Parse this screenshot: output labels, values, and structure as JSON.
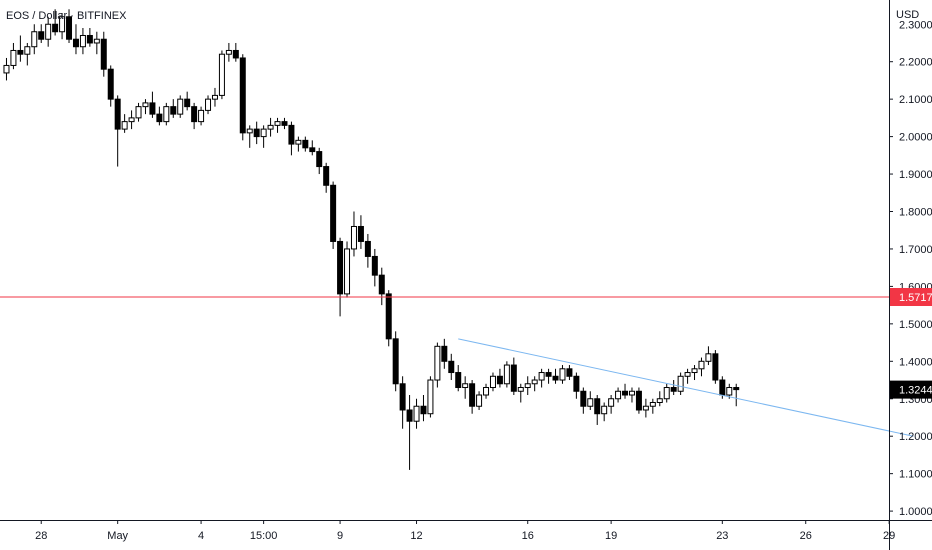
{
  "header": {
    "symbol": "EOS / Dollar",
    "exchange": "BITFINEX"
  },
  "chart_data": {
    "type": "candlestick",
    "title": "EOS / Dollar · BITFINEX",
    "currency": "USD",
    "ylim": [
      0.95,
      2.3
    ],
    "y_ticks": [
      2.2,
      2.1,
      2.0,
      1.9,
      1.8,
      1.7,
      1.6,
      1.5,
      1.4,
      1.3,
      1.2,
      1.1,
      1.0
    ],
    "y_tick_labels": [
      "2.2000",
      "2.1000",
      "2.0000",
      "1.9000",
      "1.8000",
      "1.7000",
      "1.6000",
      "1.5000",
      "1.4000",
      "1.3000",
      "1.2000",
      "1.1000",
      "1.0000"
    ],
    "top_partial_label": "2.3000",
    "x_ticks": [
      {
        "label": "28",
        "bar": 5
      },
      {
        "label": "May",
        "bar": 16
      },
      {
        "label": "4",
        "bar": 28
      },
      {
        "label": "15:00",
        "bar": 37
      },
      {
        "label": "9",
        "bar": 48
      },
      {
        "label": "12",
        "bar": 59
      },
      {
        "label": "16",
        "bar": 75
      },
      {
        "label": "19",
        "bar": 87
      },
      {
        "label": "23",
        "bar": 103
      },
      {
        "label": "26",
        "bar": 115
      },
      {
        "label": "29",
        "bar": 127
      }
    ],
    "horizontal_line": {
      "value": 1.5717,
      "label": "1.5717",
      "color": "#f23645"
    },
    "last_price": {
      "value": 1.3244,
      "label": "1.3244"
    },
    "trendline": {
      "from": {
        "bar": 65,
        "price": 1.46
      },
      "to": {
        "bar": 131,
        "price": 1.2
      },
      "color": "#7cb7f0"
    },
    "candles": [
      [
        2.17,
        2.21,
        2.15,
        2.19
      ],
      [
        2.19,
        2.25,
        2.18,
        2.23
      ],
      [
        2.23,
        2.27,
        2.2,
        2.22
      ],
      [
        2.22,
        2.25,
        2.19,
        2.24
      ],
      [
        2.24,
        2.3,
        2.22,
        2.28
      ],
      [
        2.28,
        2.3,
        2.25,
        2.26
      ],
      [
        2.26,
        2.32,
        2.24,
        2.3
      ],
      [
        2.3,
        2.34,
        2.27,
        2.28
      ],
      [
        2.28,
        2.33,
        2.26,
        2.32
      ],
      [
        2.32,
        2.34,
        2.25,
        2.26
      ],
      [
        2.26,
        2.3,
        2.22,
        2.24
      ],
      [
        2.24,
        2.29,
        2.22,
        2.27
      ],
      [
        2.27,
        2.29,
        2.24,
        2.25
      ],
      [
        2.25,
        2.28,
        2.22,
        2.26
      ],
      [
        2.26,
        2.28,
        2.16,
        2.18
      ],
      [
        2.18,
        2.19,
        2.08,
        2.1
      ],
      [
        2.1,
        2.11,
        1.92,
        2.02
      ],
      [
        2.02,
        2.06,
        2.01,
        2.04
      ],
      [
        2.04,
        2.07,
        2.02,
        2.05
      ],
      [
        2.05,
        2.09,
        2.04,
        2.08
      ],
      [
        2.08,
        2.1,
        2.06,
        2.09
      ],
      [
        2.09,
        2.12,
        2.05,
        2.06
      ],
      [
        2.06,
        2.08,
        2.03,
        2.04
      ],
      [
        2.04,
        2.09,
        2.03,
        2.08
      ],
      [
        2.08,
        2.1,
        2.05,
        2.06
      ],
      [
        2.06,
        2.11,
        2.05,
        2.1
      ],
      [
        2.1,
        2.12,
        2.07,
        2.08
      ],
      [
        2.08,
        2.09,
        2.02,
        2.04
      ],
      [
        2.04,
        2.08,
        2.03,
        2.07
      ],
      [
        2.07,
        2.11,
        2.06,
        2.1
      ],
      [
        2.1,
        2.13,
        2.08,
        2.11
      ],
      [
        2.11,
        2.23,
        2.1,
        2.22
      ],
      [
        2.22,
        2.25,
        2.2,
        2.23
      ],
      [
        2.23,
        2.25,
        2.2,
        2.21
      ],
      [
        2.21,
        2.22,
        1.99,
        2.01
      ],
      [
        2.01,
        2.03,
        1.97,
        2.02
      ],
      [
        2.02,
        2.04,
        1.98,
        2.0
      ],
      [
        2.0,
        2.03,
        1.97,
        2.02
      ],
      [
        2.02,
        2.05,
        2.0,
        2.03
      ],
      [
        2.03,
        2.05,
        2.01,
        2.04
      ],
      [
        2.04,
        2.05,
        2.02,
        2.03
      ],
      [
        2.03,
        2.04,
        1.95,
        1.98
      ],
      [
        1.98,
        2.0,
        1.96,
        1.99
      ],
      [
        1.99,
        2.0,
        1.96,
        1.97
      ],
      [
        1.97,
        1.99,
        1.95,
        1.96
      ],
      [
        1.96,
        1.97,
        1.9,
        1.92
      ],
      [
        1.92,
        1.93,
        1.85,
        1.87
      ],
      [
        1.87,
        1.88,
        1.7,
        1.72
      ],
      [
        1.72,
        1.73,
        1.52,
        1.58
      ],
      [
        1.58,
        1.72,
        1.57,
        1.7
      ],
      [
        1.7,
        1.8,
        1.68,
        1.76
      ],
      [
        1.76,
        1.79,
        1.7,
        1.72
      ],
      [
        1.72,
        1.74,
        1.65,
        1.68
      ],
      [
        1.68,
        1.7,
        1.6,
        1.63
      ],
      [
        1.63,
        1.65,
        1.55,
        1.58
      ],
      [
        1.58,
        1.59,
        1.44,
        1.46
      ],
      [
        1.46,
        1.48,
        1.32,
        1.34
      ],
      [
        1.34,
        1.36,
        1.22,
        1.27
      ],
      [
        1.27,
        1.31,
        1.11,
        1.24
      ],
      [
        1.24,
        1.3,
        1.22,
        1.28
      ],
      [
        1.28,
        1.31,
        1.24,
        1.26
      ],
      [
        1.26,
        1.36,
        1.25,
        1.35
      ],
      [
        1.35,
        1.45,
        1.33,
        1.44
      ],
      [
        1.44,
        1.46,
        1.38,
        1.4
      ],
      [
        1.4,
        1.42,
        1.35,
        1.37
      ],
      [
        1.37,
        1.39,
        1.32,
        1.33
      ],
      [
        1.33,
        1.36,
        1.3,
        1.34
      ],
      [
        1.34,
        1.35,
        1.26,
        1.28
      ],
      [
        1.28,
        1.32,
        1.27,
        1.31
      ],
      [
        1.31,
        1.34,
        1.3,
        1.33
      ],
      [
        1.33,
        1.37,
        1.32,
        1.36
      ],
      [
        1.36,
        1.38,
        1.33,
        1.34
      ],
      [
        1.34,
        1.4,
        1.33,
        1.39
      ],
      [
        1.39,
        1.41,
        1.31,
        1.32
      ],
      [
        1.32,
        1.34,
        1.29,
        1.33
      ],
      [
        1.33,
        1.36,
        1.31,
        1.34
      ],
      [
        1.34,
        1.36,
        1.32,
        1.35
      ],
      [
        1.35,
        1.38,
        1.33,
        1.37
      ],
      [
        1.37,
        1.38,
        1.34,
        1.36
      ],
      [
        1.36,
        1.38,
        1.34,
        1.35
      ],
      [
        1.35,
        1.39,
        1.34,
        1.38
      ],
      [
        1.38,
        1.39,
        1.35,
        1.36
      ],
      [
        1.36,
        1.37,
        1.3,
        1.32
      ],
      [
        1.32,
        1.33,
        1.26,
        1.28
      ],
      [
        1.28,
        1.32,
        1.27,
        1.3
      ],
      [
        1.3,
        1.31,
        1.23,
        1.26
      ],
      [
        1.26,
        1.29,
        1.24,
        1.28
      ],
      [
        1.28,
        1.31,
        1.26,
        1.3
      ],
      [
        1.3,
        1.33,
        1.29,
        1.32
      ],
      [
        1.32,
        1.34,
        1.3,
        1.31
      ],
      [
        1.31,
        1.33,
        1.29,
        1.32
      ],
      [
        1.32,
        1.33,
        1.26,
        1.27
      ],
      [
        1.27,
        1.3,
        1.25,
        1.28
      ],
      [
        1.28,
        1.3,
        1.26,
        1.29
      ],
      [
        1.29,
        1.32,
        1.28,
        1.3
      ],
      [
        1.3,
        1.34,
        1.29,
        1.33
      ],
      [
        1.33,
        1.35,
        1.31,
        1.32
      ],
      [
        1.32,
        1.37,
        1.31,
        1.36
      ],
      [
        1.36,
        1.38,
        1.34,
        1.37
      ],
      [
        1.37,
        1.39,
        1.35,
        1.38
      ],
      [
        1.38,
        1.41,
        1.36,
        1.4
      ],
      [
        1.4,
        1.44,
        1.39,
        1.42
      ],
      [
        1.42,
        1.43,
        1.34,
        1.35
      ],
      [
        1.35,
        1.36,
        1.3,
        1.31
      ],
      [
        1.31,
        1.34,
        1.3,
        1.33
      ],
      [
        1.33,
        1.34,
        1.28,
        1.3244
      ]
    ]
  }
}
